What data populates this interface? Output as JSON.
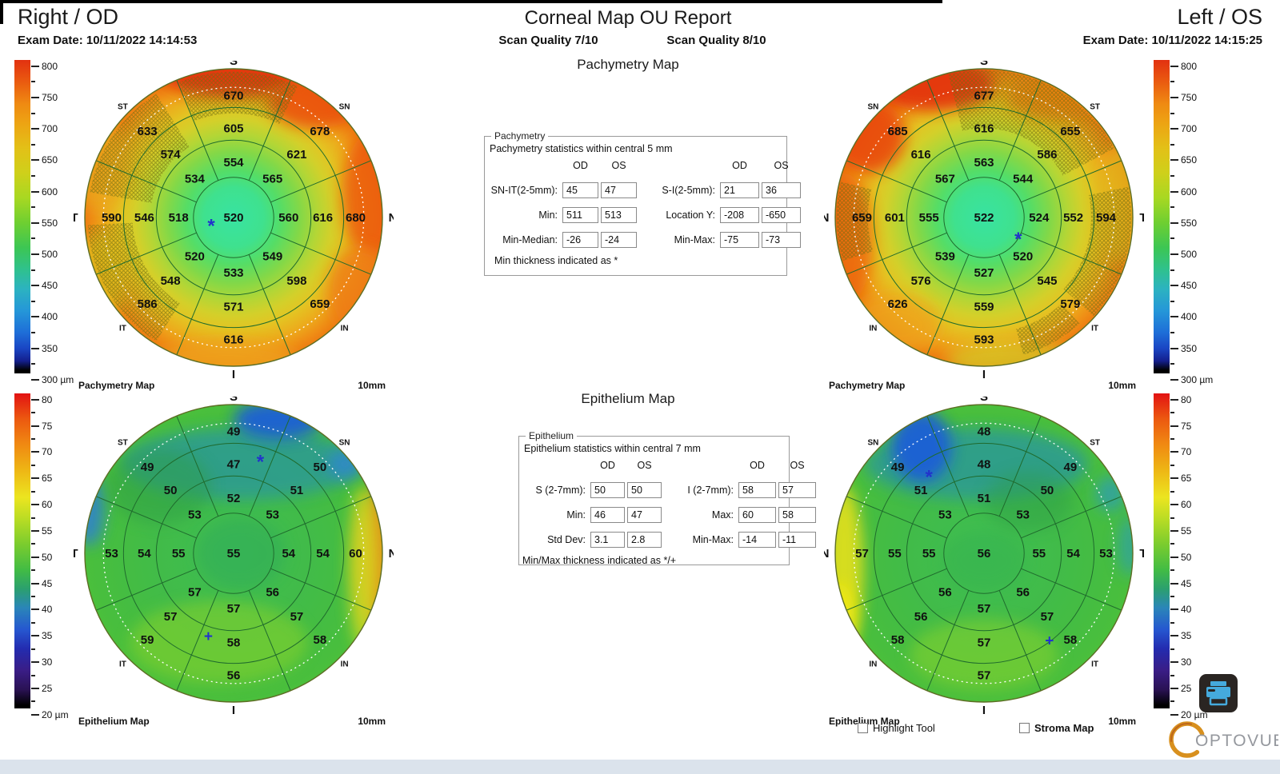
{
  "header": {
    "right_eye_label": "Right / OD",
    "report_title": "Corneal Map OU Report",
    "left_eye_label": "Left / OS",
    "od_exam_date": "Exam Date: 10/11/2022 14:14:53",
    "os_exam_date": "Exam Date: 10/11/2022 14:15:25",
    "od_scan_quality": "Scan Quality 7/10",
    "os_scan_quality": "Scan Quality 8/10",
    "pachymetry_section_title": "Pachymetry Map",
    "epithelium_section_title": "Epithelium Map"
  },
  "pachymetry_stats": {
    "legend": "Pachymetry",
    "subtitle": "Pachymetry statistics within central 5 mm",
    "col_headers": [
      "OD",
      "OS"
    ],
    "rows_left": [
      {
        "label": "SN-IT(2-5mm):",
        "od": "45",
        "os": "47"
      },
      {
        "label": "Min:",
        "od": "511",
        "os": "513"
      },
      {
        "label": "Min-Median:",
        "od": "-26",
        "os": "-24"
      }
    ],
    "rows_right": [
      {
        "label": "S-I(2-5mm):",
        "od": "21",
        "os": "36"
      },
      {
        "label": "Location Y:",
        "od": "-208",
        "os": "-650"
      },
      {
        "label": "Min-Max:",
        "od": "-75",
        "os": "-73"
      }
    ],
    "footnote": "Min thickness indicated as *"
  },
  "epithelium_stats": {
    "legend": "Epithelium",
    "subtitle": "Epithelium statistics within central 7 mm",
    "col_headers": [
      "OD",
      "OS"
    ],
    "rows_left": [
      {
        "label": "S (2-7mm):",
        "od": "50",
        "os": "50"
      },
      {
        "label": "Min:",
        "od": "46",
        "os": "47"
      },
      {
        "label": "Std Dev:",
        "od": "3.1",
        "os": "2.8"
      }
    ],
    "rows_right": [
      {
        "label": "I (2-7mm):",
        "od": "58",
        "os": "57"
      },
      {
        "label": "Max:",
        "od": "60",
        "os": "58"
      },
      {
        "label": "Min-Max:",
        "od": "-14",
        "os": "-11"
      }
    ],
    "footnote": "Min/Max thickness indicated as */+"
  },
  "scales": {
    "pachymetry": {
      "range": [
        300,
        800
      ],
      "ticks": [
        "800",
        "750",
        "700",
        "650",
        "600",
        "550",
        "500",
        "450",
        "400",
        "350",
        "300 µm"
      ]
    },
    "epithelium": {
      "range": [
        20,
        80
      ],
      "ticks": [
        "80",
        "75",
        "70",
        "65",
        "60",
        "55",
        "50",
        "45",
        "40",
        "35",
        "30",
        "25",
        "20 µm"
      ]
    }
  },
  "maps": {
    "od_pachy": {
      "footer_left": "Pachymetry Map",
      "footer_right": "10mm"
    },
    "os_pachy": {
      "footer_left": "Pachymetry Map",
      "footer_right": "10mm"
    },
    "od_epi": {
      "footer_left": "Epithelium Map",
      "footer_right": "10mm"
    },
    "os_epi": {
      "footer_left": "Epithelium Map",
      "footer_right": "10mm"
    }
  },
  "chart_data": [
    {
      "id": "od_pachy",
      "type": "heatmap",
      "title": "OD Pachymetry Map",
      "eye": "OD",
      "units": "µm",
      "diameter": "10mm",
      "value_range": [
        300,
        800
      ],
      "compass": {
        "top": "S",
        "top_left": "ST",
        "left": "T",
        "bottom_left": "IT",
        "bottom": "I",
        "bottom_right": "IN",
        "right": "N",
        "top_right": "SN"
      },
      "center": 520,
      "rings": {
        "inner": {
          "S": 554,
          "SN": 565,
          "N": 560,
          "IN": 549,
          "I": 533,
          "IT": 520,
          "T": 518,
          "ST": 534
        },
        "middle": {
          "S": 605,
          "SN": 621,
          "N": 616,
          "IN": 598,
          "I": 571,
          "IT": 548,
          "T": 546,
          "ST": 574
        },
        "outer": {
          "S": 670,
          "SN": 678,
          "N": 680,
          "IN": 659,
          "I": 616,
          "IT": 586,
          "T": 590,
          "ST": 633
        }
      },
      "markers": [
        {
          "type": "min",
          "symbol": "*"
        }
      ]
    },
    {
      "id": "os_pachy",
      "type": "heatmap",
      "title": "OS Pachymetry Map",
      "eye": "OS",
      "units": "µm",
      "diameter": "10mm",
      "value_range": [
        300,
        800
      ],
      "compass": {
        "top": "S",
        "top_left": "SN",
        "left": "N",
        "bottom_left": "IN",
        "bottom": "I",
        "bottom_right": "IT",
        "right": "T",
        "top_right": "ST"
      },
      "center": 522,
      "rings": {
        "inner": {
          "S": 563,
          "SN": 567,
          "N": 555,
          "IN": 539,
          "I": 527,
          "IT": 520,
          "T": 524,
          "ST": 544
        },
        "middle": {
          "S": 616,
          "SN": 616,
          "N": 601,
          "IN": 576,
          "I": 559,
          "IT": 545,
          "T": 552,
          "ST": 586
        },
        "outer": {
          "S": 677,
          "SN": 685,
          "N": 659,
          "IN": 626,
          "I": 593,
          "IT": 579,
          "T": 594,
          "ST": 655
        }
      },
      "markers": [
        {
          "type": "min",
          "symbol": "*"
        }
      ]
    },
    {
      "id": "od_epi",
      "type": "heatmap",
      "title": "OD Epithelium Map",
      "eye": "OD",
      "units": "µm",
      "diameter": "10mm",
      "value_range": [
        20,
        80
      ],
      "compass": {
        "top": "S",
        "top_left": "ST",
        "left": "T",
        "bottom_left": "IT",
        "bottom": "I",
        "bottom_right": "IN",
        "right": "N",
        "top_right": "SN"
      },
      "center": 55,
      "rings": {
        "inner": {
          "S": 52,
          "SN": 53,
          "N": 54,
          "IN": 56,
          "I": 57,
          "IT": 57,
          "T": 55,
          "ST": 53
        },
        "middle": {
          "S": 47,
          "SN": 51,
          "N": 54,
          "IN": 57,
          "I": 58,
          "IT": 57,
          "T": 54,
          "ST": 50
        },
        "outer": {
          "S": 49,
          "SN": 50,
          "N": 60,
          "IN": 58,
          "I": 56,
          "IT": 59,
          "T": 53,
          "ST": 49
        }
      },
      "markers": [
        {
          "type": "min",
          "symbol": "*"
        },
        {
          "type": "max",
          "symbol": "+"
        }
      ]
    },
    {
      "id": "os_epi",
      "type": "heatmap",
      "title": "OS Epithelium Map",
      "eye": "OS",
      "units": "µm",
      "diameter": "10mm",
      "value_range": [
        20,
        80
      ],
      "compass": {
        "top": "S",
        "top_left": "SN",
        "left": "N",
        "bottom_left": "IN",
        "bottom": "I",
        "bottom_right": "IT",
        "right": "T",
        "top_right": "ST"
      },
      "center": 56,
      "rings": {
        "inner": {
          "S": 51,
          "SN": 53,
          "N": 55,
          "IN": 56,
          "I": 57,
          "IT": 56,
          "T": 55,
          "ST": 53
        },
        "middle": {
          "S": 48,
          "SN": 51,
          "N": 55,
          "IN": 56,
          "I": 57,
          "IT": 57,
          "T": 54,
          "ST": 50
        },
        "outer": {
          "S": 48,
          "SN": 49,
          "N": 57,
          "IN": 58,
          "I": 57,
          "IT": 58,
          "T": 53,
          "ST": 49
        }
      },
      "markers": [
        {
          "type": "min",
          "symbol": "*"
        },
        {
          "type": "max",
          "symbol": "+"
        }
      ]
    }
  ],
  "footer": {
    "highlight_tool_label": "Highlight Tool",
    "stroma_map_label": "Stroma Map",
    "logo_text": "OPTOVUE"
  },
  "colors": {
    "marker_blue": "#2233cc",
    "brand_orange": "#d8901e",
    "logo_text_gray": "#95989e",
    "printer_blue": "#45aadd"
  }
}
